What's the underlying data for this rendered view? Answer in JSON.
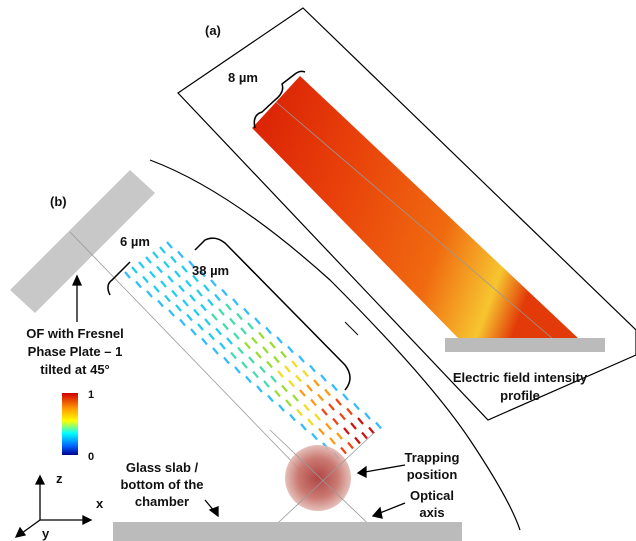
{
  "panel_a": {
    "label": "(a)",
    "width_label": "8 µm",
    "caption": [
      "Electric field intensity",
      "profile"
    ]
  },
  "panel_b": {
    "label": "(b)",
    "width_label": "6 µm",
    "length_label": "38 µm",
    "plate_caption": [
      "OF with Fresnel",
      "Phase Plate – 1",
      "tilted at 45°"
    ],
    "colorbar": {
      "max_label": "1",
      "min_label": "0"
    },
    "trapping_label": [
      "Trapping",
      "position"
    ],
    "axis_label": [
      "Optical",
      "axis"
    ],
    "slab_label": [
      "Glass slab /",
      "bottom of the",
      "chamber"
    ],
    "axes": {
      "z": "z",
      "x": "x",
      "y": "y"
    }
  }
}
